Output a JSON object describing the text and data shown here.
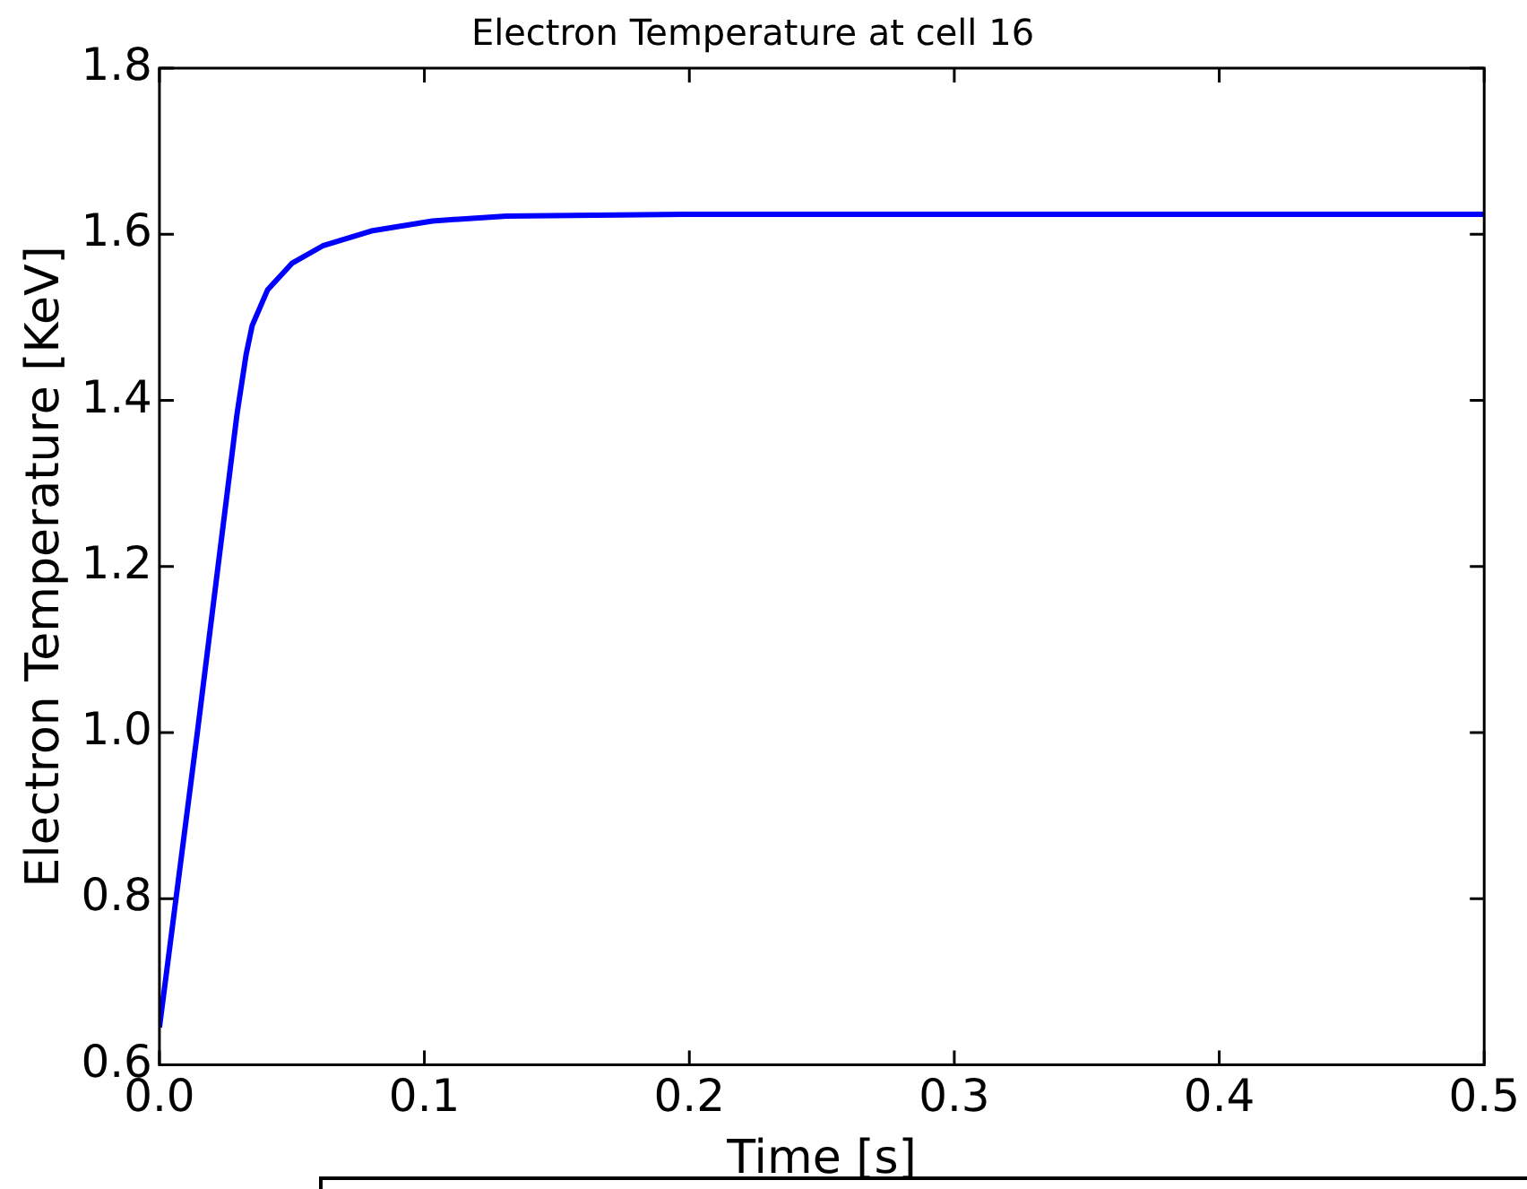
{
  "chart_data": {
    "type": "line",
    "title": "Electron Temperature at cell 16",
    "xlabel": "Time [s]",
    "ylabel": "Electron Temperature [KeV]",
    "series": [
      {
        "color": "#0000ff",
        "x": [
          0,
          0.0143,
          0.0293,
          0.0327,
          0.035,
          0.0408,
          0.05,
          0.0616,
          0.08,
          0.103,
          0.131,
          0.2,
          0.3,
          0.4,
          0.5
        ],
        "values": [
          0.645,
          1.0,
          1.384,
          1.455,
          1.49,
          1.533,
          1.565,
          1.586,
          1.604,
          1.616,
          1.622,
          1.624,
          1.624,
          1.624,
          1.624
        ]
      }
    ],
    "xlim": [
      0,
      0.5
    ],
    "xticks": [
      {
        "value": 0,
        "label": "0.0"
      },
      0.1,
      0.2,
      0.3,
      0.4,
      0.5
    ],
    "ylim": [
      0.6,
      1.8
    ],
    "yticks": [
      0.6,
      0.8,
      {
        "value": 1,
        "label": "1.0"
      },
      1.2,
      1.4,
      1.6,
      1.8
    ],
    "grid": false,
    "legend": false,
    "marker": "none",
    "line_style": "solid"
  }
}
